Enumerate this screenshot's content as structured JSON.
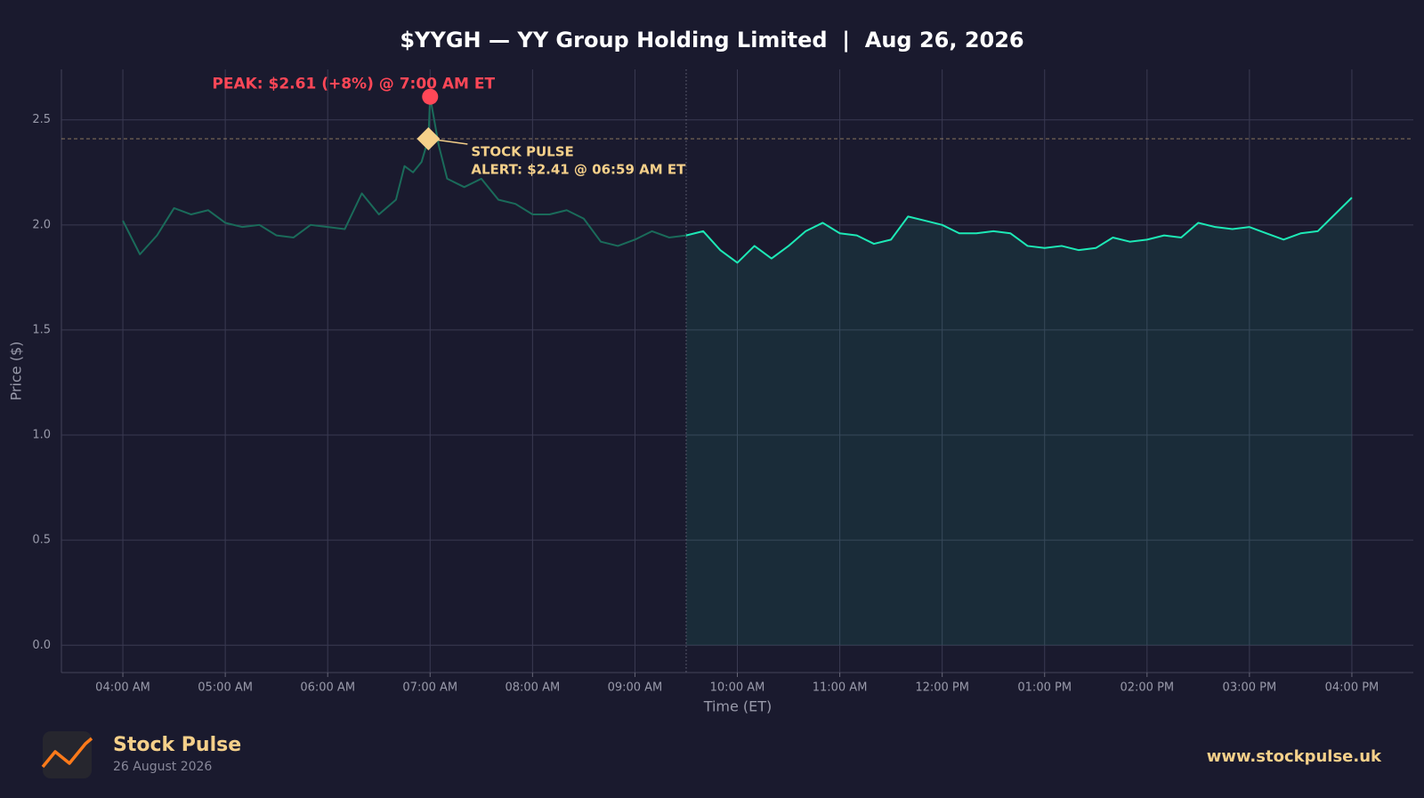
{
  "chart_data": {
    "type": "line",
    "title": "$YYGH — YY Group Holding Limited  |  Aug 26, 2026",
    "xlabel": "Time (ET)",
    "ylabel": "Price ($)",
    "x": [
      "04:00",
      "04:10",
      "04:20",
      "04:30",
      "04:40",
      "04:50",
      "05:00",
      "05:10",
      "05:20",
      "05:30",
      "05:40",
      "05:50",
      "06:00",
      "06:10",
      "06:20",
      "06:30",
      "06:40",
      "06:45",
      "06:50",
      "06:55",
      "06:59",
      "07:00",
      "07:05",
      "07:10",
      "07:20",
      "07:30",
      "07:40",
      "07:50",
      "08:00",
      "08:10",
      "08:20",
      "08:30",
      "08:40",
      "08:50",
      "09:00",
      "09:10",
      "09:20",
      "09:30",
      "09:40",
      "09:50",
      "10:00",
      "10:10",
      "10:20",
      "10:30",
      "10:40",
      "10:50",
      "11:00",
      "11:10",
      "11:20",
      "11:30",
      "11:40",
      "11:50",
      "12:00",
      "12:10",
      "12:20",
      "12:30",
      "12:40",
      "12:50",
      "13:00",
      "13:10",
      "13:20",
      "13:30",
      "13:40",
      "13:50",
      "14:00",
      "14:10",
      "14:20",
      "14:30",
      "14:40",
      "14:50",
      "15:00",
      "15:10",
      "15:20",
      "15:30",
      "15:40",
      "15:50",
      "16:00"
    ],
    "series": [
      {
        "color": "#1de9b6",
        "premarket_color": "#1a6b5a",
        "values": [
          2.02,
          1.86,
          1.95,
          2.08,
          2.05,
          2.07,
          2.01,
          1.99,
          2.0,
          1.95,
          1.94,
          2.0,
          1.99,
          1.98,
          2.15,
          2.05,
          2.12,
          2.28,
          2.25,
          2.3,
          2.41,
          2.61,
          2.38,
          2.22,
          2.18,
          2.22,
          2.12,
          2.1,
          2.05,
          2.05,
          2.07,
          2.03,
          1.92,
          1.9,
          1.93,
          1.97,
          1.94,
          1.95,
          1.97,
          1.88,
          1.82,
          1.9,
          1.84,
          1.9,
          1.97,
          2.01,
          1.96,
          1.95,
          1.91,
          1.93,
          2.04,
          2.02,
          2.0,
          1.96,
          1.96,
          1.97,
          1.96,
          1.9,
          1.89,
          1.9,
          1.88,
          1.89,
          1.94,
          1.92,
          1.93,
          1.95,
          1.94,
          2.01,
          1.99,
          1.98,
          1.99,
          1.96,
          1.93,
          1.96,
          1.97,
          2.05,
          2.13
        ]
      }
    ],
    "session_start": "09:30",
    "xlim": [
      "03:24",
      "16:36"
    ],
    "xticks": [
      {
        "value": "04:00",
        "label": "04:00 AM"
      },
      {
        "value": "05:00",
        "label": "05:00 AM"
      },
      {
        "value": "06:00",
        "label": "06:00 AM"
      },
      {
        "value": "07:00",
        "label": "07:00 AM"
      },
      {
        "value": "08:00",
        "label": "08:00 AM"
      },
      {
        "value": "09:00",
        "label": "09:00 AM"
      },
      {
        "value": "10:00",
        "label": "10:00 AM"
      },
      {
        "value": "11:00",
        "label": "11:00 AM"
      },
      {
        "value": "12:00",
        "label": "12:00 PM"
      },
      {
        "value": "13:00",
        "label": "01:00 PM"
      },
      {
        "value": "14:00",
        "label": "02:00 PM"
      },
      {
        "value": "15:00",
        "label": "03:00 PM"
      },
      {
        "value": "16:00",
        "label": "04:00 PM"
      }
    ],
    "ylim": [
      -0.13,
      2.74
    ],
    "yticks": [
      {
        "value": 0,
        "label": "0.0"
      },
      {
        "value": 0.5,
        "label": "0.5"
      },
      {
        "value": 1,
        "label": "1.0"
      },
      {
        "value": 1.5,
        "label": "1.5"
      },
      {
        "value": 2,
        "label": "2.0"
      },
      {
        "value": 2.5,
        "label": "2.5"
      }
    ],
    "grid": true,
    "peak": {
      "label": "PEAK: $2.61 (+8%) @ 7:00 AM ET",
      "x": "07:00",
      "color": "#ff4757"
    },
    "alert": {
      "label": [
        "STOCK PULSE",
        "ALERT: $2.41 @ 06:59 AM ET"
      ],
      "x": "06:59",
      "value": 2.41,
      "color": "#f5d08a"
    }
  },
  "footer": {
    "brand": "Stock Pulse",
    "date": "26 August 2026",
    "url": "www.stockpulse.uk"
  }
}
